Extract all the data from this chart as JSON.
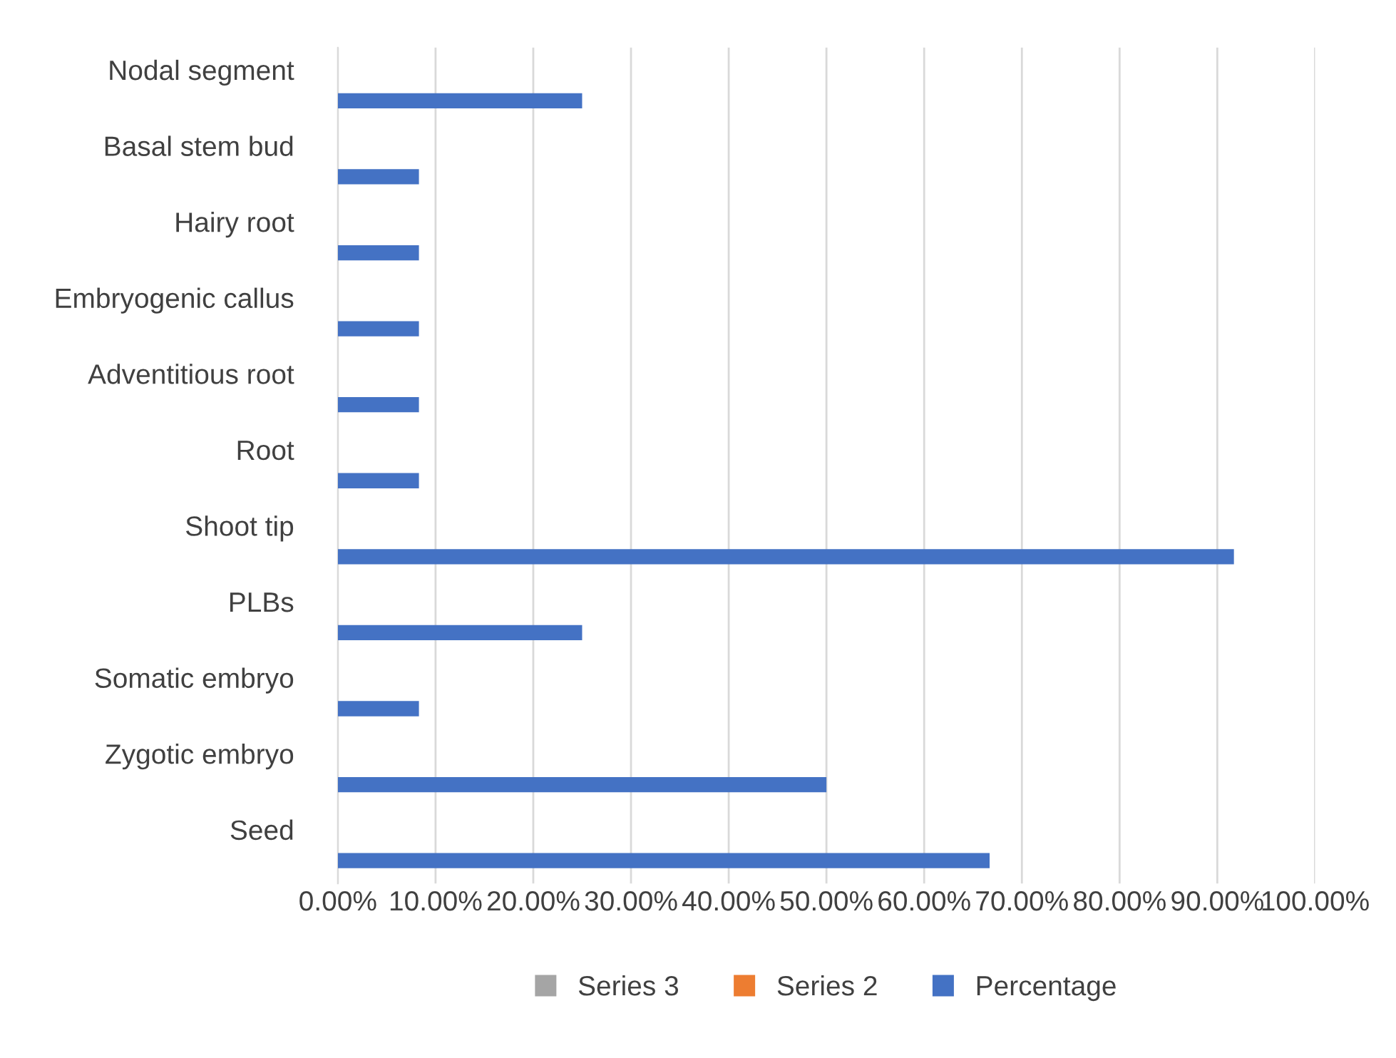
{
  "chart_data": {
    "type": "bar",
    "orientation": "horizontal",
    "categories": [
      "Nodal segment",
      "Basal stem bud",
      "Hairy root",
      "Embryogenic callus",
      "Adventitious root",
      "Root",
      "Shoot tip",
      "PLBs",
      "Somatic embryo",
      "Zygotic embryo",
      "Seed"
    ],
    "series": [
      {
        "name": "Percentage",
        "color": "#4472c4",
        "values": [
          25,
          8.3,
          8.3,
          8.3,
          8.3,
          8.3,
          91.7,
          25,
          8.3,
          50,
          66.7
        ]
      },
      {
        "name": "Series 2",
        "color": "#ed7d31",
        "values": [
          null,
          null,
          null,
          null,
          null,
          null,
          null,
          null,
          null,
          null,
          null
        ]
      },
      {
        "name": "Series 3",
        "color": "#a5a5a5",
        "values": [
          null,
          null,
          null,
          null,
          null,
          null,
          null,
          null,
          null,
          null,
          null
        ]
      }
    ],
    "xlim": [
      0,
      100
    ],
    "xticks": [
      {
        "value": 0,
        "label": "0.00%"
      },
      {
        "value": 10,
        "label": "10.00%"
      },
      {
        "value": 20,
        "label": "20.00%"
      },
      {
        "value": 30,
        "label": "30.00%"
      },
      {
        "value": 40,
        "label": "40.00%"
      },
      {
        "value": 50,
        "label": "50.00%"
      },
      {
        "value": 60,
        "label": "60.00%"
      },
      {
        "value": 70,
        "label": "70.00%"
      },
      {
        "value": 80,
        "label": "80.00%"
      },
      {
        "value": 90,
        "label": "90.00%"
      },
      {
        "value": 100,
        "label": "100.00%"
      }
    ],
    "grid": "x",
    "legend": "bottom"
  }
}
